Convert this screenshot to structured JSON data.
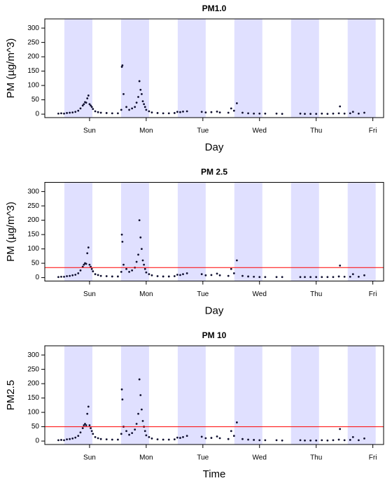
{
  "chart_data": [
    {
      "type": "scatter",
      "title": "PM1.0",
      "xlabel": "Day",
      "ylabel": "PM (µg/m^3)",
      "xlim": [
        0.21,
        6.19
      ],
      "ylim": [
        -12,
        332
      ],
      "xticks": [
        {
          "value": 1,
          "label": "Sun"
        },
        {
          "value": 2,
          "label": "Mon"
        },
        {
          "value": 3,
          "label": "Tue"
        },
        {
          "value": 4,
          "label": "Wed"
        },
        {
          "value": 5,
          "label": "Thu"
        },
        {
          "value": 6,
          "label": "Fri"
        }
      ],
      "yticks": [
        0,
        50,
        100,
        150,
        200,
        250,
        300
      ],
      "shaded_bands": [
        [
          0.556,
          1.05
        ],
        [
          1.556,
          2.05
        ],
        [
          2.556,
          3.05
        ],
        [
          3.556,
          4.05
        ],
        [
          4.556,
          5.05
        ],
        [
          5.556,
          6.05
        ]
      ],
      "band_color": "#e0e0ff",
      "color": "#101030",
      "x": [
        0.45,
        0.5,
        0.55,
        0.6,
        0.65,
        0.7,
        0.75,
        0.8,
        0.84,
        0.88,
        0.9,
        0.92,
        0.94,
        0.96,
        0.98,
        1.0,
        1.02,
        1.04,
        1.06,
        1.1,
        1.15,
        1.2,
        1.3,
        1.4,
        1.5,
        1.56,
        1.57,
        1.58,
        1.6,
        1.65,
        1.7,
        1.75,
        1.8,
        1.83,
        1.86,
        1.88,
        1.9,
        1.92,
        1.94,
        1.96,
        1.98,
        2.0,
        2.05,
        2.1,
        2.2,
        2.3,
        2.4,
        2.5,
        2.55,
        2.6,
        2.65,
        2.72,
        2.98,
        3.05,
        3.15,
        3.25,
        3.3,
        3.45,
        3.5,
        3.55,
        3.6,
        3.7,
        3.8,
        3.9,
        4.0,
        4.1,
        4.3,
        4.4,
        4.72,
        4.8,
        4.9,
        5.0,
        5.1,
        5.2,
        5.3,
        5.4,
        5.42,
        5.5,
        5.6,
        5.65,
        5.75,
        5.85
      ],
      "values": [
        2,
        3,
        2,
        4,
        5,
        6,
        8,
        12,
        20,
        30,
        35,
        42,
        40,
        55,
        65,
        35,
        30,
        25,
        18,
        10,
        7,
        5,
        4,
        3,
        3,
        15,
        165,
        170,
        70,
        25,
        15,
        20,
        25,
        40,
        60,
        115,
        85,
        70,
        45,
        35,
        25,
        15,
        10,
        6,
        4,
        3,
        3,
        4,
        8,
        7,
        9,
        10,
        8,
        6,
        7,
        9,
        6,
        5,
        20,
        12,
        38,
        5,
        3,
        2,
        2,
        2,
        2,
        1,
        2,
        1,
        1,
        1,
        2,
        1,
        2,
        3,
        27,
        2,
        3,
        8,
        2,
        5
      ]
    },
    {
      "type": "scatter",
      "title": "PM 2.5",
      "xlabel": "Day",
      "ylabel": "PM (µg/m^3)",
      "xlim": [
        0.21,
        6.19
      ],
      "ylim": [
        -12,
        332
      ],
      "xticks": [
        {
          "value": 1,
          "label": "Sun"
        },
        {
          "value": 2,
          "label": "Mon"
        },
        {
          "value": 3,
          "label": "Tue"
        },
        {
          "value": 4,
          "label": "Wed"
        },
        {
          "value": 5,
          "label": "Thu"
        },
        {
          "value": 6,
          "label": "Fri"
        }
      ],
      "yticks": [
        0,
        50,
        100,
        150,
        200,
        250,
        300
      ],
      "shaded_bands": [
        [
          0.556,
          1.05
        ],
        [
          1.556,
          2.05
        ],
        [
          2.556,
          3.05
        ],
        [
          3.556,
          4.05
        ],
        [
          4.556,
          5.05
        ],
        [
          5.556,
          6.05
        ]
      ],
      "band_color": "#e0e0ff",
      "color": "#101030",
      "hline": {
        "value": 35,
        "color": "#ff0000"
      },
      "x": [
        0.45,
        0.5,
        0.55,
        0.6,
        0.65,
        0.7,
        0.75,
        0.8,
        0.84,
        0.88,
        0.9,
        0.92,
        0.94,
        0.96,
        0.98,
        1.0,
        1.02,
        1.04,
        1.06,
        1.1,
        1.15,
        1.2,
        1.3,
        1.4,
        1.5,
        1.56,
        1.57,
        1.58,
        1.6,
        1.65,
        1.7,
        1.75,
        1.8,
        1.83,
        1.86,
        1.88,
        1.9,
        1.92,
        1.94,
        1.96,
        1.98,
        2.0,
        2.05,
        2.1,
        2.2,
        2.3,
        2.4,
        2.5,
        2.55,
        2.6,
        2.65,
        2.72,
        2.98,
        3.05,
        3.15,
        3.25,
        3.3,
        3.45,
        3.5,
        3.55,
        3.6,
        3.7,
        3.8,
        3.9,
        4.0,
        4.1,
        4.3,
        4.4,
        4.72,
        4.8,
        4.9,
        5.0,
        5.1,
        5.2,
        5.3,
        5.4,
        5.42,
        5.5,
        5.6,
        5.65,
        5.75,
        5.85
      ],
      "values": [
        2,
        3,
        3,
        5,
        6,
        8,
        10,
        15,
        25,
        38,
        45,
        50,
        48,
        85,
        105,
        45,
        38,
        30,
        22,
        12,
        9,
        6,
        5,
        4,
        4,
        20,
        150,
        125,
        45,
        30,
        20,
        25,
        35,
        55,
        80,
        200,
        140,
        100,
        60,
        45,
        30,
        18,
        12,
        8,
        5,
        4,
        4,
        5,
        10,
        9,
        12,
        15,
        12,
        8,
        9,
        14,
        8,
        6,
        30,
        15,
        60,
        6,
        4,
        3,
        2,
        2,
        2,
        2,
        2,
        2,
        2,
        2,
        2,
        2,
        2,
        4,
        42,
        3,
        3,
        12,
        3,
        8
      ]
    },
    {
      "type": "scatter",
      "title": "PM 10",
      "xlabel": "Time",
      "ylabel": "PM2.5",
      "xlim": [
        0.21,
        6.19
      ],
      "ylim": [
        -12,
        332
      ],
      "xticks": [
        {
          "value": 1,
          "label": "Sun"
        },
        {
          "value": 2,
          "label": "Mon"
        },
        {
          "value": 3,
          "label": "Tue"
        },
        {
          "value": 4,
          "label": "Wed"
        },
        {
          "value": 5,
          "label": "Thu"
        },
        {
          "value": 6,
          "label": "Fri"
        }
      ],
      "yticks": [
        0,
        50,
        100,
        150,
        200,
        250,
        300
      ],
      "shaded_bands": [
        [
          0.556,
          1.05
        ],
        [
          1.556,
          2.05
        ],
        [
          2.556,
          3.05
        ],
        [
          3.556,
          4.05
        ],
        [
          4.556,
          5.05
        ],
        [
          5.556,
          6.05
        ]
      ],
      "band_color": "#e0e0ff",
      "color": "#101030",
      "hline": {
        "value": 50,
        "color": "#ff0000"
      },
      "x": [
        0.45,
        0.5,
        0.55,
        0.6,
        0.65,
        0.7,
        0.75,
        0.8,
        0.84,
        0.88,
        0.9,
        0.92,
        0.94,
        0.96,
        0.98,
        1.0,
        1.02,
        1.04,
        1.06,
        1.1,
        1.15,
        1.2,
        1.3,
        1.4,
        1.5,
        1.56,
        1.57,
        1.58,
        1.6,
        1.65,
        1.7,
        1.75,
        1.8,
        1.83,
        1.86,
        1.88,
        1.9,
        1.92,
        1.94,
        1.96,
        1.98,
        2.0,
        2.05,
        2.1,
        2.2,
        2.3,
        2.4,
        2.5,
        2.55,
        2.6,
        2.65,
        2.72,
        2.98,
        3.05,
        3.15,
        3.25,
        3.3,
        3.45,
        3.5,
        3.55,
        3.6,
        3.7,
        3.8,
        3.9,
        4.0,
        4.1,
        4.3,
        4.4,
        4.72,
        4.8,
        4.9,
        5.0,
        5.1,
        5.2,
        5.3,
        5.4,
        5.42,
        5.5,
        5.6,
        5.65,
        5.75,
        5.85
      ],
      "values": [
        3,
        4,
        3,
        6,
        7,
        9,
        12,
        18,
        30,
        45,
        55,
        60,
        55,
        95,
        120,
        55,
        45,
        35,
        25,
        14,
        10,
        7,
        6,
        5,
        5,
        25,
        180,
        145,
        50,
        35,
        22,
        28,
        40,
        60,
        95,
        215,
        160,
        110,
        70,
        50,
        35,
        20,
        14,
        9,
        6,
        5,
        5,
        6,
        12,
        11,
        14,
        18,
        15,
        10,
        11,
        16,
        10,
        7,
        35,
        18,
        65,
        7,
        5,
        4,
        3,
        3,
        3,
        2,
        3,
        2,
        2,
        2,
        3,
        2,
        3,
        5,
        42,
        3,
        4,
        14,
        3,
        9
      ]
    }
  ]
}
